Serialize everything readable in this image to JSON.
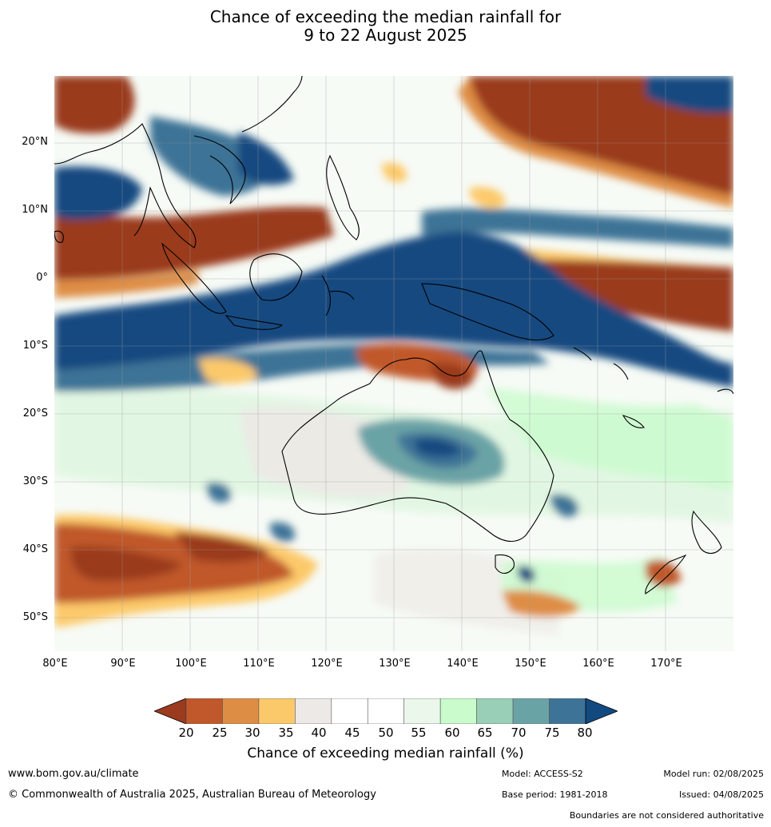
{
  "title": {
    "line1": "Chance of exceeding the median rainfall for",
    "line2": "9 to 22 August 2025"
  },
  "map": {
    "lat_labels": [
      "20°N",
      "10°N",
      "0°",
      "10°S",
      "20°S",
      "30°S",
      "40°S",
      "50°S"
    ],
    "lon_labels": [
      "80°E",
      "90°E",
      "100°E",
      "110°E",
      "120°E",
      "130°E",
      "140°E",
      "150°E",
      "160°E",
      "170°E"
    ]
  },
  "colorbar": {
    "ticks": [
      "20",
      "25",
      "30",
      "35",
      "40",
      "45",
      "50",
      "55",
      "60",
      "65",
      "70",
      "75",
      "80"
    ],
    "colors": [
      "#9a3a1e",
      "#c0582b",
      "#de8d45",
      "#fcc96a",
      "#ece9e6",
      "#ffffff",
      "#ffffff",
      "#eaf7ea",
      "#c9fbcc",
      "#99cfb6",
      "#6aa3a6",
      "#3d7396",
      "#124a80"
    ],
    "label": "Chance of exceeding median rainfall (%)"
  },
  "footer": {
    "website": "www.bom.gov.au/climate",
    "copyright": "© Commonwealth of Australia 2025, Australian Bureau of Meteorology",
    "model": "Model: ACCESS-S2",
    "model_run": "Model run: 02/08/2025",
    "base_period": "Base period: 1981-2018",
    "issued": "Issued: 04/08/2025",
    "disclaimer": "Boundaries are not considered authoritative"
  }
}
